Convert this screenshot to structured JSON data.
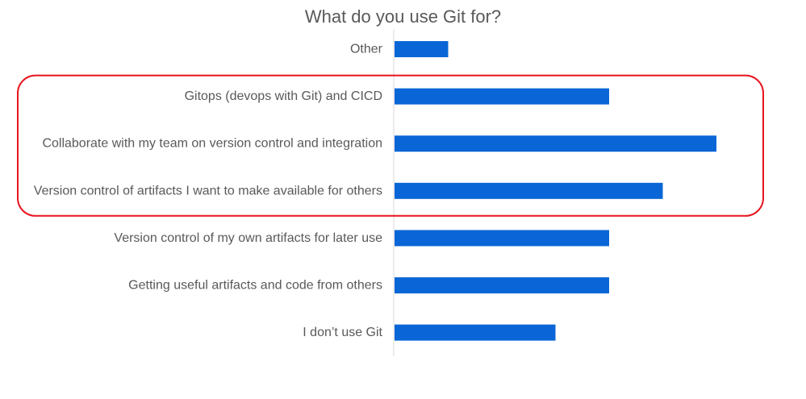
{
  "chart_data": {
    "type": "bar",
    "orientation": "horizontal",
    "title": "What do you use Git for?",
    "xlabel": "",
    "ylabel": "",
    "categories": [
      "Other",
      "Gitops (devops with Git) and CICD",
      "Collaborate with my team on version control and integration",
      "Version control of artifacts I want to make available for others",
      "Version control of my own artifacts for later use",
      "Getting useful artifacts and code from others",
      "I don’t use Git"
    ],
    "values": [
      1,
      4,
      6,
      5,
      4,
      4,
      3
    ],
    "xlim": [
      0,
      7
    ],
    "grid": false,
    "legend": "none",
    "bar_color": "#0A66D6",
    "axis_color": "#D9D9D9",
    "highlight": {
      "categories": [
        "Gitops (devops with Git) and CICD",
        "Collaborate with my team on version control and integration",
        "Version control of artifacts I want to make available for others"
      ],
      "color": "#E8141E"
    }
  }
}
